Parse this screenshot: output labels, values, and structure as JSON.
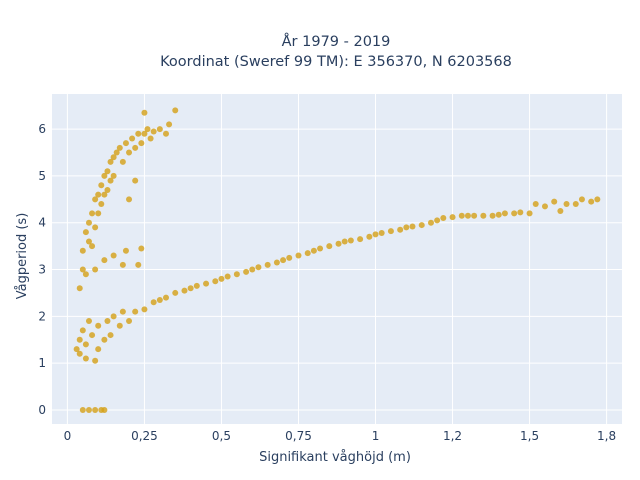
{
  "colors": {
    "plot_bg": "#e5ecf6",
    "grid": "#ffffff",
    "marker": "#d4a017",
    "text": "#2a3f5f"
  },
  "chart_data": {
    "type": "scatter",
    "title_line1": "År 1979 - 2019",
    "title_line2": "Koordinat (Sweref 99 TM): E 356370, N 6203568",
    "xlabel": "Signifikant våghöjd (m)",
    "ylabel": "Vågperiod (s)",
    "xlim": [
      -0.05,
      1.8
    ],
    "ylim": [
      -0.3,
      6.75
    ],
    "x_ticks": [
      {
        "value": 0,
        "label": "0"
      },
      {
        "value": 0.25,
        "label": "0,25"
      },
      {
        "value": 0.5,
        "label": "0,5"
      },
      {
        "value": 0.75,
        "label": "0,75"
      },
      {
        "value": 1,
        "label": "1"
      },
      {
        "value": 1.25,
        "label": "1,2"
      },
      {
        "value": 1.5,
        "label": "1,5"
      },
      {
        "value": 1.75,
        "label": "1,8"
      }
    ],
    "y_ticks": [
      {
        "value": 0,
        "label": "0"
      },
      {
        "value": 1,
        "label": "1"
      },
      {
        "value": 2,
        "label": "2"
      },
      {
        "value": 3,
        "label": "3"
      },
      {
        "value": 4,
        "label": "4"
      },
      {
        "value": 5,
        "label": "5"
      },
      {
        "value": 6,
        "label": "6"
      }
    ],
    "grid": true,
    "series": [
      {
        "points": [
          [
            0.05,
            0.0
          ],
          [
            0.07,
            0.0
          ],
          [
            0.09,
            0.0
          ],
          [
            0.11,
            0.0
          ],
          [
            0.12,
            0.0
          ],
          [
            0.03,
            1.3
          ],
          [
            0.04,
            1.5
          ],
          [
            0.04,
            1.2
          ],
          [
            0.05,
            1.7
          ],
          [
            0.06,
            1.1
          ],
          [
            0.06,
            1.4
          ],
          [
            0.07,
            1.9
          ],
          [
            0.08,
            1.6
          ],
          [
            0.09,
            1.05
          ],
          [
            0.1,
            1.3
          ],
          [
            0.1,
            1.8
          ],
          [
            0.12,
            1.5
          ],
          [
            0.13,
            1.9
          ],
          [
            0.14,
            1.6
          ],
          [
            0.15,
            2.0
          ],
          [
            0.17,
            1.8
          ],
          [
            0.18,
            2.1
          ],
          [
            0.2,
            1.9
          ],
          [
            0.22,
            2.1
          ],
          [
            0.25,
            2.15
          ],
          [
            0.28,
            2.3
          ],
          [
            0.3,
            2.35
          ],
          [
            0.32,
            2.4
          ],
          [
            0.35,
            2.5
          ],
          [
            0.38,
            2.55
          ],
          [
            0.4,
            2.6
          ],
          [
            0.42,
            2.65
          ],
          [
            0.45,
            2.7
          ],
          [
            0.48,
            2.75
          ],
          [
            0.5,
            2.8
          ],
          [
            0.52,
            2.85
          ],
          [
            0.55,
            2.9
          ],
          [
            0.58,
            2.95
          ],
          [
            0.6,
            3.0
          ],
          [
            0.62,
            3.05
          ],
          [
            0.65,
            3.1
          ],
          [
            0.68,
            3.15
          ],
          [
            0.7,
            3.2
          ],
          [
            0.72,
            3.25
          ],
          [
            0.75,
            3.3
          ],
          [
            0.78,
            3.35
          ],
          [
            0.8,
            3.4
          ],
          [
            0.82,
            3.45
          ],
          [
            0.85,
            3.5
          ],
          [
            0.88,
            3.55
          ],
          [
            0.9,
            3.6
          ],
          [
            0.92,
            3.62
          ],
          [
            0.95,
            3.65
          ],
          [
            0.98,
            3.7
          ],
          [
            1.0,
            3.75
          ],
          [
            1.02,
            3.78
          ],
          [
            1.05,
            3.82
          ],
          [
            1.08,
            3.85
          ],
          [
            1.1,
            3.9
          ],
          [
            1.12,
            3.92
          ],
          [
            1.15,
            3.95
          ],
          [
            1.18,
            4.0
          ],
          [
            1.2,
            4.05
          ],
          [
            1.22,
            4.1
          ],
          [
            1.25,
            4.12
          ],
          [
            1.28,
            4.15
          ],
          [
            1.3,
            4.15
          ],
          [
            1.32,
            4.15
          ],
          [
            1.35,
            4.15
          ],
          [
            1.38,
            4.15
          ],
          [
            1.4,
            4.17
          ],
          [
            1.42,
            4.2
          ],
          [
            1.45,
            4.2
          ],
          [
            1.47,
            4.22
          ],
          [
            1.5,
            4.2
          ],
          [
            1.52,
            4.4
          ],
          [
            1.55,
            4.35
          ],
          [
            1.58,
            4.45
          ],
          [
            1.6,
            4.25
          ],
          [
            1.62,
            4.4
          ],
          [
            1.65,
            4.4
          ],
          [
            1.67,
            4.5
          ],
          [
            1.7,
            4.45
          ],
          [
            1.72,
            4.5
          ],
          [
            0.04,
            2.6
          ],
          [
            0.05,
            3.0
          ],
          [
            0.05,
            3.4
          ],
          [
            0.06,
            3.8
          ],
          [
            0.06,
            2.9
          ],
          [
            0.07,
            3.6
          ],
          [
            0.07,
            4.0
          ],
          [
            0.08,
            4.2
          ],
          [
            0.08,
            3.5
          ],
          [
            0.09,
            4.5
          ],
          [
            0.09,
            3.9
          ],
          [
            0.1,
            4.6
          ],
          [
            0.1,
            4.2
          ],
          [
            0.11,
            4.8
          ],
          [
            0.11,
            4.4
          ],
          [
            0.12,
            5.0
          ],
          [
            0.12,
            4.6
          ],
          [
            0.13,
            5.1
          ],
          [
            0.13,
            4.7
          ],
          [
            0.14,
            5.3
          ],
          [
            0.14,
            4.9
          ],
          [
            0.15,
            5.4
          ],
          [
            0.15,
            5.0
          ],
          [
            0.16,
            5.5
          ],
          [
            0.17,
            5.6
          ],
          [
            0.18,
            5.3
          ],
          [
            0.19,
            5.7
          ],
          [
            0.2,
            5.5
          ],
          [
            0.21,
            5.8
          ],
          [
            0.22,
            5.6
          ],
          [
            0.23,
            5.9
          ],
          [
            0.24,
            5.7
          ],
          [
            0.25,
            5.9
          ],
          [
            0.26,
            6.0
          ],
          [
            0.27,
            5.8
          ],
          [
            0.28,
            5.95
          ],
          [
            0.3,
            6.0
          ],
          [
            0.32,
            5.9
          ],
          [
            0.33,
            6.1
          ],
          [
            0.35,
            6.4
          ],
          [
            0.25,
            6.35
          ],
          [
            0.22,
            4.9
          ],
          [
            0.19,
            3.4
          ],
          [
            0.15,
            3.3
          ],
          [
            0.24,
            3.45
          ],
          [
            0.23,
            3.1
          ],
          [
            0.18,
            3.1
          ],
          [
            0.12,
            3.2
          ],
          [
            0.09,
            3.0
          ],
          [
            0.2,
            4.5
          ]
        ]
      }
    ]
  }
}
